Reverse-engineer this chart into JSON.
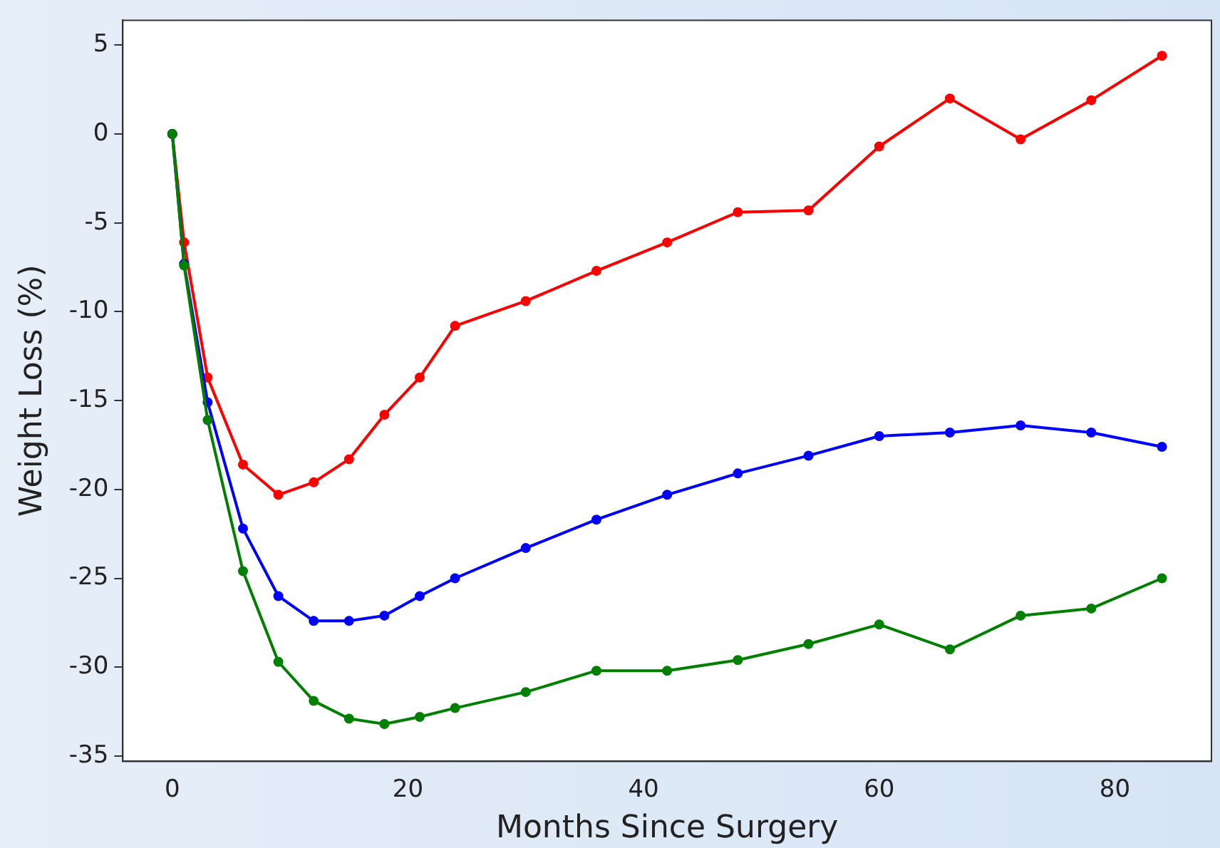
{
  "chart_data": {
    "type": "line",
    "xlabel": "Months Since Surgery",
    "ylabel": "Weight Loss (%)",
    "x": [
      0,
      1,
      3,
      6,
      9,
      12,
      15,
      18,
      21,
      24,
      30,
      36,
      42,
      48,
      54,
      60,
      66,
      72,
      78,
      84
    ],
    "series": [
      {
        "color": "#ff0000",
        "values": [
          0,
          -6.1,
          -13.7,
          -18.6,
          -20.3,
          -19.6,
          -18.3,
          -15.8,
          -13.7,
          -10.8,
          -9.4,
          -7.7,
          -6.1,
          -4.4,
          -4.3,
          -0.7,
          2.0,
          -0.3,
          1.9,
          4.4
        ]
      },
      {
        "color": "#0000ff",
        "values": [
          0,
          -7.3,
          -15.1,
          -22.2,
          -26.0,
          -27.4,
          -27.4,
          -27.1,
          -26.0,
          -25.0,
          -23.3,
          -21.7,
          -20.3,
          -19.1,
          -18.1,
          -17.0,
          -16.8,
          -16.4,
          -16.8,
          -17.6
        ]
      },
      {
        "color": "#008000",
        "values": [
          0,
          -7.4,
          -16.1,
          -24.6,
          -29.7,
          -31.9,
          -32.9,
          -33.2,
          -32.8,
          -32.3,
          -31.4,
          -30.2,
          -30.2,
          -29.6,
          -28.7,
          -27.6,
          -29.0,
          -27.1,
          -26.7,
          -25.0
        ]
      }
    ],
    "xlim": [
      -4.2,
      88.2
    ],
    "xticks": [
      0,
      20,
      40,
      60,
      80
    ],
    "ylim": [
      -35.3,
      6.4
    ],
    "yticks": [
      -35,
      -30,
      -25,
      -20,
      -15,
      -10,
      -5,
      0,
      5
    ],
    "grid": false,
    "legend": false,
    "marker": "circle",
    "line_style": "solid"
  }
}
